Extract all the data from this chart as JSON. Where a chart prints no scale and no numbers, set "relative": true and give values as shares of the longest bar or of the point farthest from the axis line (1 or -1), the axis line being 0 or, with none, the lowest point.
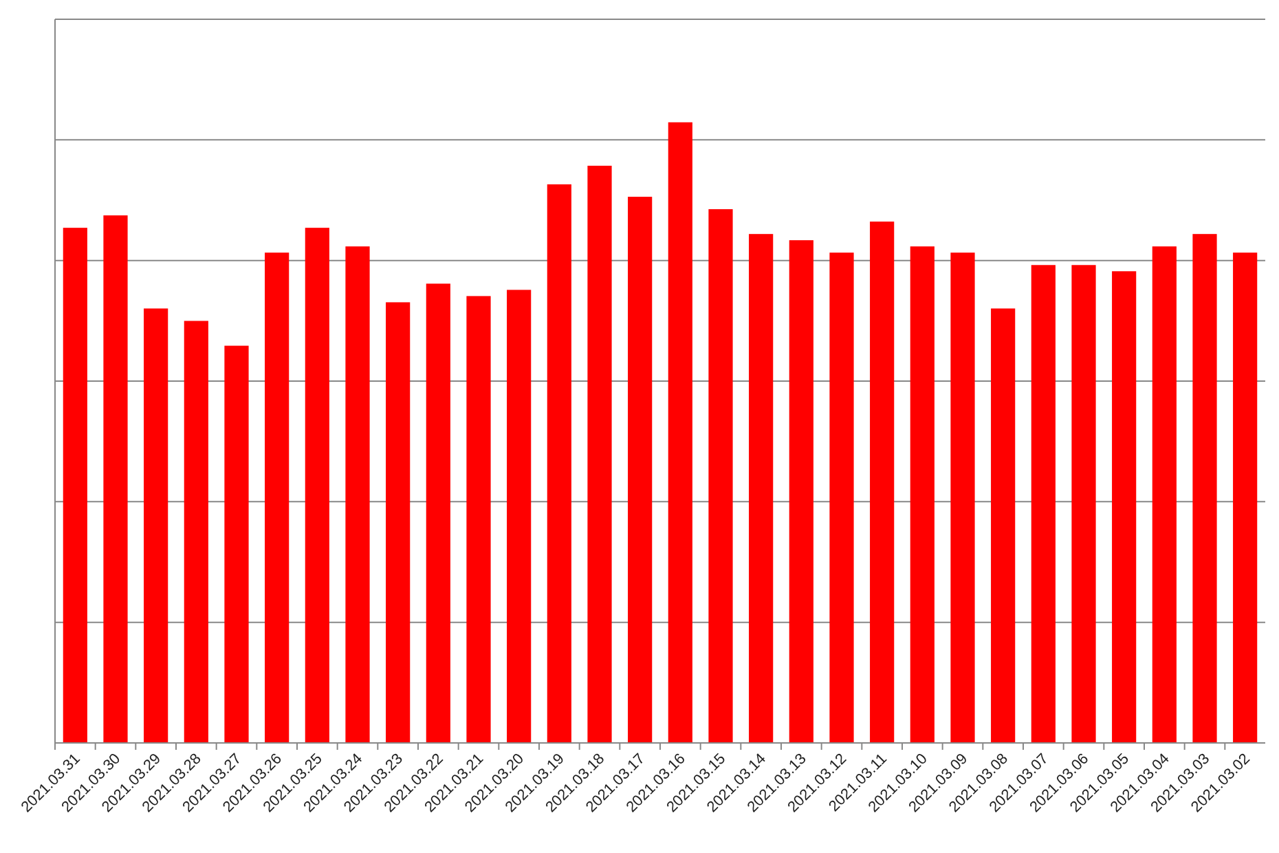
{
  "chart_data": {
    "type": "bar",
    "relative": true,
    "grid": "y",
    "color": "#ff0000",
    "categories": [
      "2021.03.31",
      "2021.03.30",
      "2021.03.29",
      "2021.03.28",
      "2021.03.27",
      "2021.03.26",
      "2021.03.25",
      "2021.03.24",
      "2021.03.23",
      "2021.03.22",
      "2021.03.21",
      "2021.03.20",
      "2021.03.19",
      "2021.03.18",
      "2021.03.17",
      "2021.03.16",
      "2021.03.15",
      "2021.03.14",
      "2021.03.13",
      "2021.03.12",
      "2021.03.11",
      "2021.03.10",
      "2021.03.09",
      "2021.03.08",
      "2021.03.07",
      "2021.03.06",
      "2021.03.05",
      "2021.03.04",
      "2021.03.03",
      "2021.03.02"
    ],
    "values": [
      0.83,
      0.85,
      0.7,
      0.68,
      0.64,
      0.79,
      0.83,
      0.8,
      0.71,
      0.74,
      0.72,
      0.73,
      0.9,
      0.93,
      0.88,
      1,
      0.86,
      0.82,
      0.81,
      0.79,
      0.84,
      0.8,
      0.79,
      0.7,
      0.77,
      0.77,
      0.76,
      0.8,
      0.82,
      0.79
    ]
  }
}
